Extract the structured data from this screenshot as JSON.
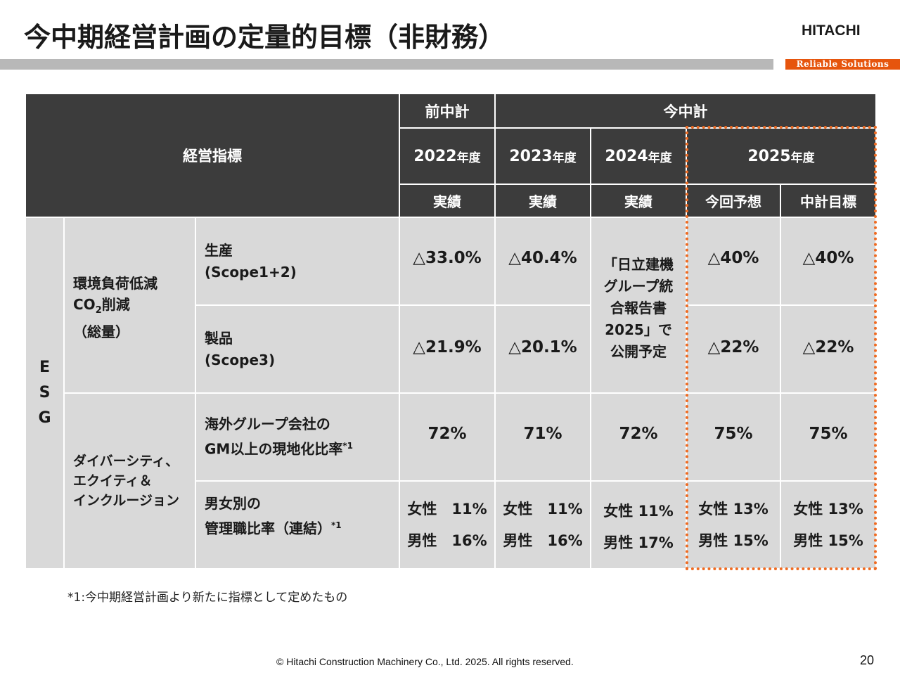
{
  "header": {
    "title": "今中期経営計画の定量的目標（非財務）",
    "logo": "HITACHI",
    "tagline": "Reliable Solutions"
  },
  "table": {
    "header": {
      "indicator": "経営指標",
      "prev_plan": "前中計",
      "current_plan": "今中計",
      "years": [
        {
          "year": "2022",
          "unit": "年度"
        },
        {
          "year": "2023",
          "unit": "年度"
        },
        {
          "year": "2024",
          "unit": "年度"
        },
        {
          "year": "2025",
          "unit": "年度"
        }
      ],
      "actual": "実績",
      "forecast": "今回予想",
      "target": "中計目標"
    },
    "esg_label": [
      "E",
      "S",
      "G"
    ],
    "env": {
      "category": [
        "環境負荷低減",
        "CO",
        "2",
        "削減",
        "（総量）"
      ],
      "rows": [
        {
          "name_1": "生産",
          "name_2": "(Scope1+2)",
          "v2022": "△33.0%",
          "v2023": "△40.4%",
          "forecast": "△40%",
          "target": "△40%"
        },
        {
          "name_1": "製品",
          "name_2": "(Scope3)",
          "v2022": "△21.9%",
          "v2023": "△20.1%",
          "forecast": "△22%",
          "target": "△22%"
        }
      ],
      "note_2024": [
        "「日立建機",
        "グループ統",
        "合報告書",
        "2025」で",
        "公開予定"
      ]
    },
    "dei": {
      "category": [
        "ダイバーシティ、",
        "エクイティ＆",
        "インクルージョン"
      ],
      "localization": {
        "name_1": "海外グループ会社の",
        "name_2": "GM以上の現地化比率",
        "mark": "*1",
        "v2022": "72%",
        "v2023": "71%",
        "v2024": "72%",
        "forecast": "75%",
        "target": "75%"
      },
      "managers": {
        "name_1": "男女別の",
        "name_2": "管理職比率（連結）",
        "mark": "*1",
        "v2022": [
          "女性　11%",
          "男性　16%"
        ],
        "v2023": [
          "女性　11%",
          "男性　16%"
        ],
        "v2024": [
          "女性 11%",
          "男性 17%"
        ],
        "forecast": [
          "女性 13%",
          "男性 15%"
        ],
        "target": [
          "女性 13%",
          "男性 15%"
        ]
      }
    }
  },
  "footnote": "*1:今中期経営計画より新たに指標として定めたもの",
  "copyright": "© Hitachi Construction Machinery Co., Ltd. 2025. All rights reserved.",
  "page_number": "20",
  "colors": {
    "header_bg": "#3c3c3c",
    "body_bg": "#d9d9d9",
    "accent": "#ef6b22",
    "tagline_bg": "#e6550d"
  }
}
